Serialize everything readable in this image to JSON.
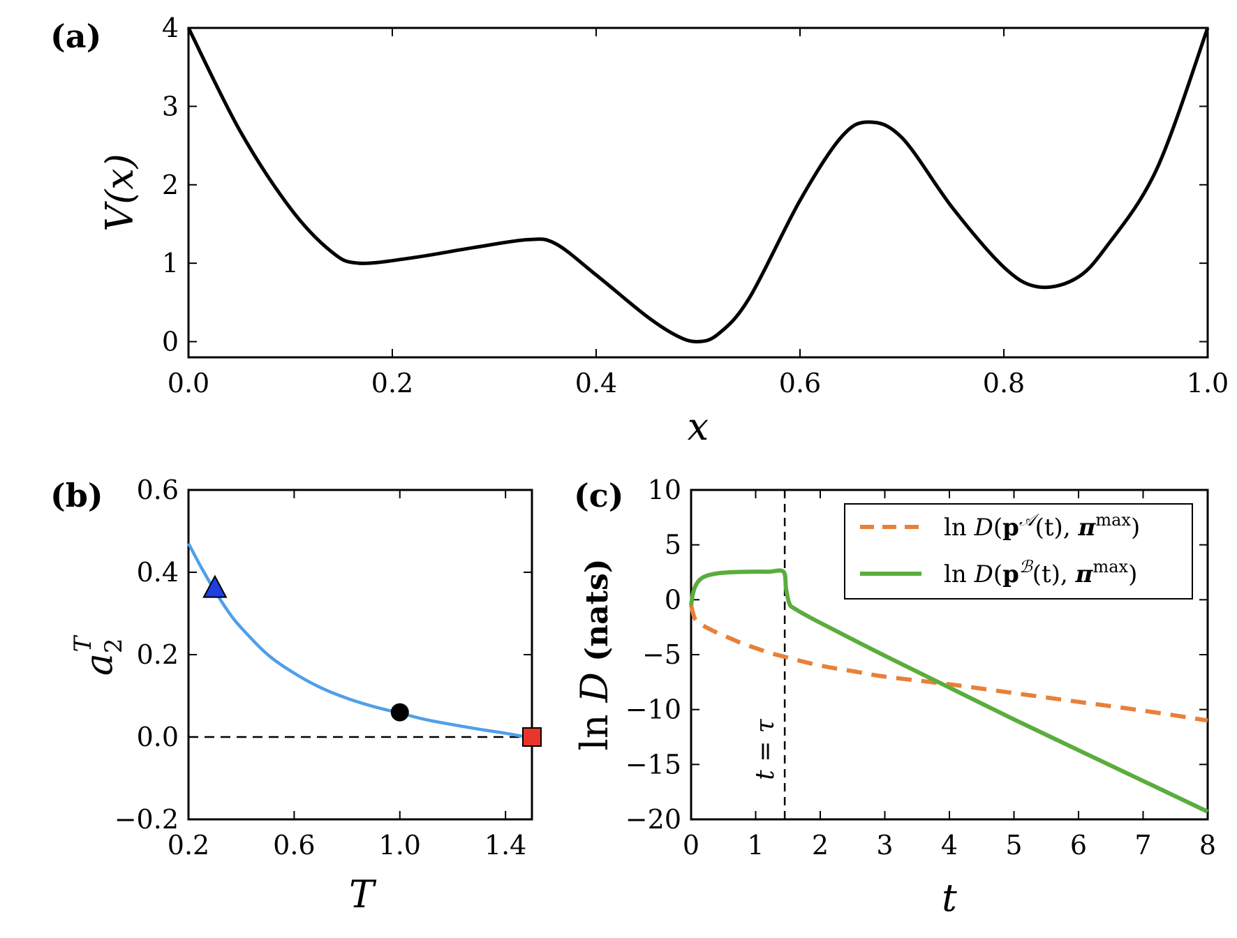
{
  "colors": {
    "potential": "#000000",
    "a2_curve": "#4f9fe8",
    "triangle": "#1f3fe0",
    "circle": "#000000",
    "square": "#e8372a",
    "series_A": "#e8803a",
    "series_B": "#5aad3c"
  },
  "chart_data": [
    {
      "panel": "(a)",
      "type": "line",
      "xlabel": "x",
      "ylabel": "V(x)",
      "xlim": [
        0.0,
        1.0
      ],
      "ylim": [
        -0.2,
        4.0
      ],
      "xticks": [
        "0.0",
        "0.2",
        "0.4",
        "0.6",
        "0.8",
        "1.0"
      ],
      "yticks": [
        "0",
        "1",
        "2",
        "3",
        "4"
      ],
      "series": [
        {
          "x": [
            0.0,
            0.05,
            0.1,
            0.14,
            0.167,
            0.22,
            0.28,
            0.333,
            0.36,
            0.4,
            0.45,
            0.48,
            0.5,
            0.52,
            0.55,
            0.6,
            0.64,
            0.667,
            0.7,
            0.75,
            0.8,
            0.833,
            0.87,
            0.9,
            0.95,
            1.0
          ],
          "y": [
            4.0,
            2.7,
            1.7,
            1.15,
            1.0,
            1.07,
            1.2,
            1.3,
            1.25,
            0.85,
            0.32,
            0.07,
            0.0,
            0.1,
            0.55,
            1.8,
            2.6,
            2.8,
            2.6,
            1.7,
            0.95,
            0.7,
            0.8,
            1.2,
            2.2,
            4.0
          ]
        }
      ]
    },
    {
      "panel": "(b)",
      "type": "line",
      "xlabel": "T",
      "ylabel": "a_2^T",
      "xlim": [
        0.2,
        1.5
      ],
      "ylim": [
        -0.2,
        0.6
      ],
      "xticks": [
        "0.2",
        "0.6",
        "1.0",
        "1.4"
      ],
      "yticks": [
        "−0.2",
        "0.0",
        "0.2",
        "0.4",
        "0.6"
      ],
      "reference_line_y": 0.0,
      "series": [
        {
          "x": [
            0.2,
            0.25,
            0.3,
            0.35,
            0.4,
            0.5,
            0.6,
            0.7,
            0.8,
            0.9,
            1.0,
            1.1,
            1.2,
            1.3,
            1.4,
            1.48
          ],
          "y": [
            0.47,
            0.41,
            0.355,
            0.305,
            0.265,
            0.2,
            0.155,
            0.12,
            0.094,
            0.074,
            0.058,
            0.042,
            0.03,
            0.019,
            0.009,
            0.0
          ]
        }
      ],
      "markers": [
        {
          "shape": "triangle",
          "x": 0.3,
          "y": 0.36
        },
        {
          "shape": "circle",
          "x": 1.0,
          "y": 0.06
        },
        {
          "shape": "square",
          "x": 1.5,
          "y": 0.0
        }
      ]
    },
    {
      "panel": "(c)",
      "type": "line",
      "xlabel": "t",
      "ylabel": "ln D (nats)",
      "xlim": [
        0,
        8
      ],
      "ylim": [
        -20,
        10
      ],
      "xticks": [
        "0",
        "1",
        "2",
        "3",
        "4",
        "5",
        "6",
        "7",
        "8"
      ],
      "yticks": [
        "−20",
        "−15",
        "−10",
        "−5",
        "0",
        "5",
        "10"
      ],
      "vline_x": 1.45,
      "vline_label": "t = τ",
      "legend_position": "top-right",
      "series": [
        {
          "name": "ln D(p^A(t), π^max)",
          "style": "dashed",
          "x": [
            0.0,
            0.05,
            0.1,
            0.2,
            0.4,
            0.6,
            0.8,
            1.0,
            1.2,
            1.45,
            2.0,
            2.5,
            3.0,
            4.0,
            5.0,
            6.0,
            7.0,
            8.0
          ],
          "y": [
            -0.5,
            -1.6,
            -2.0,
            -2.4,
            -3.0,
            -3.5,
            -4.0,
            -4.4,
            -4.8,
            -5.2,
            -6.0,
            -6.5,
            -7.0,
            -7.7,
            -8.5,
            -9.3,
            -10.1,
            -11.0
          ]
        },
        {
          "name": "ln D(p^B(t), π^max)",
          "style": "solid",
          "x": [
            0.0,
            0.03,
            0.08,
            0.15,
            0.25,
            0.4,
            0.6,
            0.9,
            1.2,
            1.43,
            1.47,
            1.52,
            1.6,
            2.0,
            3.0,
            4.0,
            5.0,
            6.0,
            7.0,
            8.0
          ],
          "y": [
            -0.5,
            0.6,
            1.4,
            1.9,
            2.2,
            2.4,
            2.5,
            2.55,
            2.55,
            2.55,
            1.0,
            -0.3,
            -0.8,
            -2.1,
            -5.1,
            -8.0,
            -10.9,
            -13.7,
            -16.5,
            -19.3
          ]
        }
      ]
    }
  ],
  "texts": {
    "a_panel": "(a)",
    "a_xlabel_x": "x",
    "a_ylabel_V": "V",
    "a_ylabel_paren": "(x)",
    "b_panel": "(b)",
    "b_xlabel": "T",
    "b_ylabel_a": "a",
    "b_ylabel_sub": "2",
    "b_ylabel_sup": "T",
    "c_panel": "(c)",
    "c_xlabel": "t",
    "c_ylabel_ln": "ln ",
    "c_ylabel_D": "D",
    "c_ylabel_units": " (nats)",
    "c_vline_label": "t = τ",
    "legend_ln": "ln ",
    "legend_D": "D",
    "legend_open": "(",
    "legend_p": "p",
    "legend_sup_A": "𝒜",
    "legend_sup_B": "ℬ",
    "legend_t": "(t), ",
    "legend_pi": "π",
    "legend_sup_max": "max",
    "legend_close": ")"
  }
}
